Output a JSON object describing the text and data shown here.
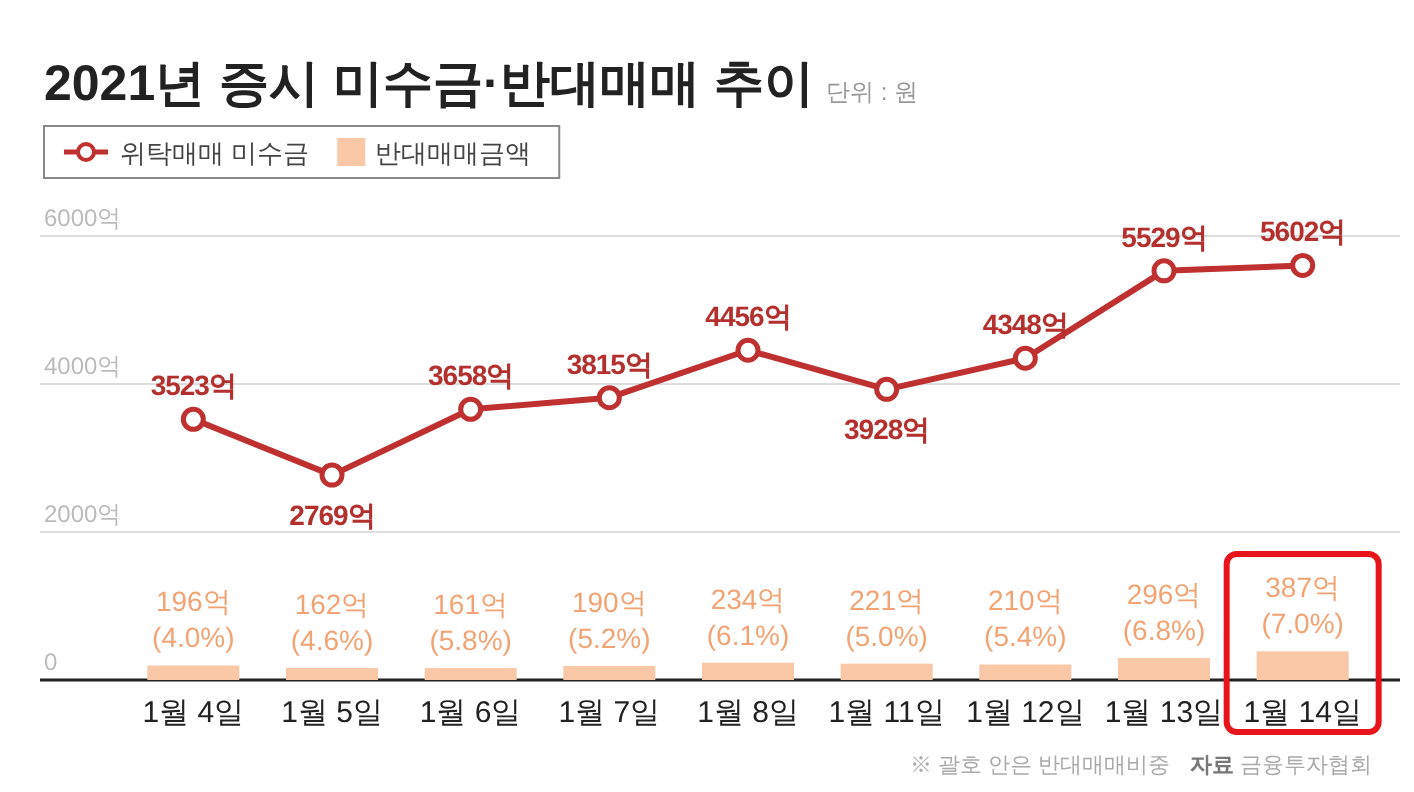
{
  "chart_data": {
    "type": "bar",
    "title": "2021년 증시 미수금·반대매매 추이",
    "subtitle": "단위 : 원",
    "categories": [
      "1월 4일",
      "1월 5일",
      "1월 6일",
      "1월 7일",
      "1월 8일",
      "1월 11일",
      "1월 12일",
      "1월 13일",
      "1월 14일"
    ],
    "series": [
      {
        "name": "위탁매매 미수금",
        "type": "line",
        "color": "#bf3130",
        "marker": "circle",
        "values": [
          3523,
          2769,
          3658,
          3815,
          4456,
          3928,
          4348,
          5529,
          5602
        ],
        "value_labels": [
          "3523억",
          "2769억",
          "3658억",
          "3815억",
          "4456억",
          "3928억",
          "4348억",
          "5529억",
          "5602억"
        ]
      },
      {
        "name": "반대매매금액",
        "color": "#f9c8a6",
        "values": [
          196,
          162,
          161,
          190,
          234,
          221,
          210,
          296,
          387
        ],
        "value_labels": [
          "196억\n(4.0%)",
          "162억\n(4.6%)",
          "161억\n(5.8%)",
          "190억\n(5.2%)",
          "234억\n(6.1%)",
          "221억\n(5.0%)",
          "210억\n(5.4%)",
          "296억\n(6.8%)",
          "387억\n(7.0%)"
        ]
      }
    ],
    "ylim": [
      0,
      6000
    ],
    "yticks": [
      0,
      {
        "value": 2000,
        "label": "2000억"
      },
      {
        "value": 4000,
        "label": "4000억"
      },
      {
        "value": 6000,
        "label": "6000억"
      }
    ],
    "grid": "y",
    "legend": "top left",
    "annotations": [
      "※ 괄호 안은 반대매매비중",
      "자료 금융투자협회"
    ]
  }
}
